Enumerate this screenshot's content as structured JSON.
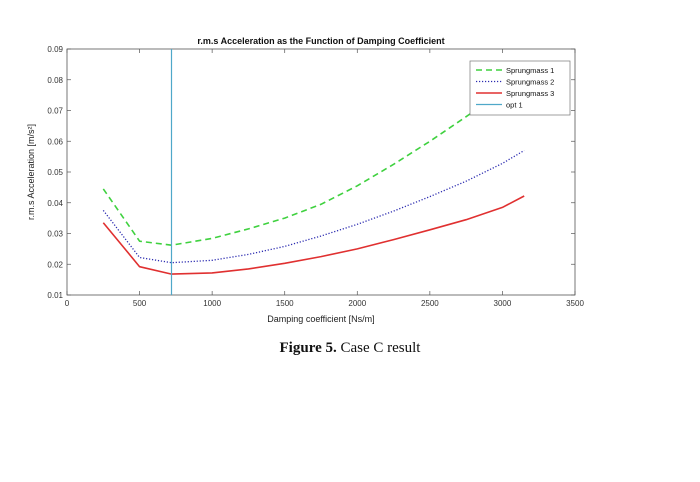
{
  "chart_data": {
    "type": "line",
    "title": "r.m.s Acceleration as the Function of Damping Coefficient",
    "xlabel": "Damping coefficient [Ns/m]",
    "ylabel": "r.m.s Acceleration [m/s²]",
    "xlim": [
      0,
      3500
    ],
    "ylim": [
      0.01,
      0.09
    ],
    "x_ticks": [
      0,
      500,
      1000,
      1500,
      2000,
      2500,
      3000,
      3500
    ],
    "y_ticks": [
      0.01,
      0.02,
      0.03,
      0.04,
      0.05,
      0.06,
      0.07,
      0.08,
      0.09
    ],
    "x_tick_labels": [
      "0",
      "500",
      "1000",
      "1500",
      "2000",
      "2500",
      "3000",
      "3500"
    ],
    "y_tick_labels": [
      "0.01",
      "0.02",
      "0.03",
      "0.04",
      "0.05",
      "0.06",
      "0.07",
      "0.08",
      "0.09"
    ],
    "grid": false,
    "legend_position": "top-right",
    "series": [
      {
        "name": "Sprungmass 1",
        "color": "#3fd13f",
        "style": "dashed",
        "x": [
          250,
          500,
          720,
          1000,
          1250,
          1500,
          1750,
          2000,
          2250,
          2500,
          2750,
          2900
        ],
        "y": [
          0.0445,
          0.0275,
          0.0262,
          0.0284,
          0.0315,
          0.035,
          0.0395,
          0.0455,
          0.0525,
          0.06,
          0.068,
          0.073
        ]
      },
      {
        "name": "Sprungmass 2",
        "color": "#2b2bb0",
        "style": "dotted",
        "x": [
          250,
          500,
          720,
          1000,
          1250,
          1500,
          1750,
          2000,
          2250,
          2500,
          2750,
          3000,
          3150
        ],
        "y": [
          0.0375,
          0.0222,
          0.0205,
          0.0213,
          0.0232,
          0.0258,
          0.0292,
          0.033,
          0.0373,
          0.042,
          0.047,
          0.0528,
          0.057
        ]
      },
      {
        "name": "Sprungmass 3",
        "color": "#e03030",
        "style": "solid",
        "x": [
          250,
          500,
          720,
          1000,
          1250,
          1500,
          1750,
          2000,
          2250,
          2500,
          2750,
          3000,
          3150
        ],
        "y": [
          0.0335,
          0.0192,
          0.0168,
          0.0172,
          0.0185,
          0.0203,
          0.0225,
          0.025,
          0.028,
          0.0312,
          0.0345,
          0.0385,
          0.0422
        ]
      },
      {
        "name": "opt 1",
        "color": "#4fa8c9",
        "style": "solid",
        "x": [
          720,
          720
        ],
        "y": [
          0.01,
          0.09
        ]
      }
    ]
  },
  "caption": {
    "label": "Figure 5.",
    "text": " Case C result"
  }
}
